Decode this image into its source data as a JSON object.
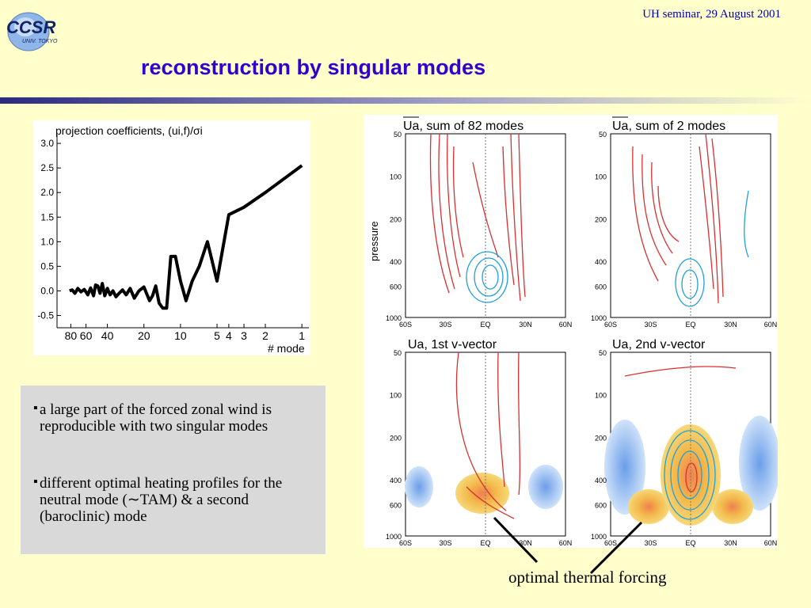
{
  "header": {
    "logo_text": "CCSR",
    "logo_subtext": "UNIV. TOKYO",
    "seminar": "UH seminar, 29 August 2001",
    "title": "reconstruction by singular modes"
  },
  "projection_chart": {
    "title": "projection coefficients, (ui,f)/σi",
    "xlabel": "# mode",
    "y_ticks": [
      "3.0",
      "2.5",
      "2.0",
      "1.5",
      "1.0",
      "0.5",
      "0.0",
      "-0.5"
    ],
    "x_ticks": [
      "80",
      "60",
      "40",
      "20",
      "10",
      "5",
      "4",
      "3",
      "2",
      "1"
    ]
  },
  "chart_data": {
    "type": "line",
    "title": "projection coefficients, (ui,f)/σi",
    "xlabel": "# mode",
    "ylabel": "",
    "ylim": [
      -0.75,
      3.05
    ],
    "x_scale": "reversed-log",
    "grid": false,
    "series": [
      {
        "x": [
          82,
          78,
          74,
          70,
          66,
          62,
          58,
          55,
          52,
          50,
          48,
          46,
          44,
          42,
          40,
          38,
          36,
          34,
          32,
          30,
          28,
          26,
          24,
          22,
          20,
          18,
          17,
          16,
          15,
          14,
          13,
          12,
          11,
          10,
          9,
          8,
          7,
          6,
          5,
          4,
          3,
          2,
          1
        ],
        "values": [
          0.0,
          0.02,
          -0.05,
          0.05,
          -0.02,
          0.03,
          -0.08,
          0.06,
          -0.1,
          0.12,
          0.1,
          -0.05,
          0.15,
          -0.1,
          0.05,
          -0.08,
          0.0,
          -0.12,
          -0.05,
          0.02,
          -0.08,
          0.05,
          -0.15,
          0.0,
          0.08,
          -0.2,
          -0.1,
          0.1,
          -0.25,
          -0.35,
          -0.35,
          0.7,
          0.7,
          0.2,
          -0.2,
          0.2,
          0.5,
          1.0,
          0.2,
          1.55,
          1.7,
          2.0,
          2.55
        ]
      }
    ]
  },
  "maps": {
    "panels": [
      {
        "title": "Ua, sum of 82 modes"
      },
      {
        "title": "Ua, sum of 2 modes"
      },
      {
        "title": "Ua, 1st v-vector"
      },
      {
        "title": "Ua, 2nd v-vector"
      }
    ],
    "ylabel": "pressure",
    "y_ticks": [
      "50",
      "100",
      "200",
      "400",
      "600",
      "1000"
    ],
    "x_ticks": [
      "60S",
      "30S",
      "EQ",
      "30N",
      "60N"
    ]
  },
  "bullets": [
    "a large part of the forced zonal wind is reproducible with two singular modes",
    "different optimal heating profiles for the neutral mode (∼TAM) & a second (baroclinic) mode"
  ],
  "annotation": {
    "label": "optimal thermal forcing"
  }
}
